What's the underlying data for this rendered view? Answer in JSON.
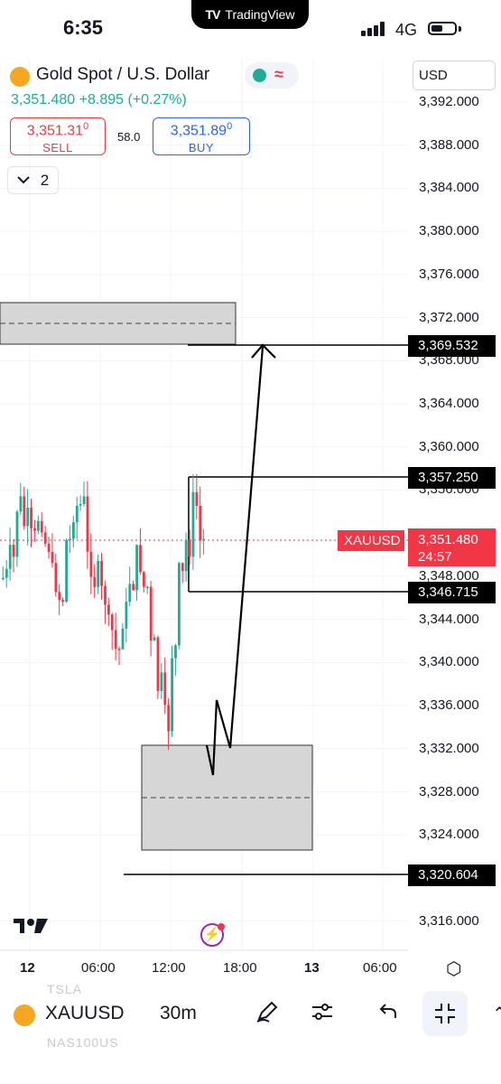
{
  "status_bar": {
    "time": "6:35",
    "app_banner": "TradingView",
    "network": "4G"
  },
  "header": {
    "symbol_title": "Gold Spot / U.S. Dollar",
    "last_price": "3,351.480",
    "change": "+8.895",
    "change_pct": "(+0.27%)",
    "sell": {
      "price": "3,351.31",
      "price_sup": "0",
      "label": "SELL"
    },
    "buy": {
      "price": "3,351.89",
      "price_sup": "0",
      "label": "BUY"
    },
    "spread": "58.0",
    "indicator_count": "2",
    "currency": "USD"
  },
  "chart": {
    "price_labels": [
      "3,392.000",
      "3,388.000",
      "3,384.000",
      "3,380.000",
      "3,376.000",
      "3,372.000",
      "3,368.000",
      "3,364.000",
      "3,360.000",
      "3,356.000",
      "3,348.000",
      "3,344.000",
      "3,340.000",
      "3,336.000",
      "3,332.000",
      "3,328.000",
      "3,324.000",
      "3,316.000"
    ],
    "level_tags": [
      "3,369.532",
      "3,357.250",
      "3,346.715",
      "3,320.604"
    ],
    "symbol_tag": "XAUUSD",
    "current_price": "3,351.480",
    "countdown": "24:57",
    "time_labels": [
      "12",
      "06:00",
      "12:00",
      "18:00",
      "13",
      "06:00"
    ],
    "up_color": "#22ab94",
    "down_color": "#f23645"
  },
  "bottom_bar": {
    "symbol": "XAUUSD",
    "interval": "30m",
    "ghost_symbols": [
      "TSLA",
      "NAS100US"
    ]
  },
  "icons": [
    "tradingview-logo-icon",
    "gold-coin-icon",
    "chevron-down-icon",
    "lightning-icon",
    "hexagon-settings-icon",
    "pen-icon",
    "sliders-icon",
    "undo-icon",
    "collapse-icon"
  ]
}
